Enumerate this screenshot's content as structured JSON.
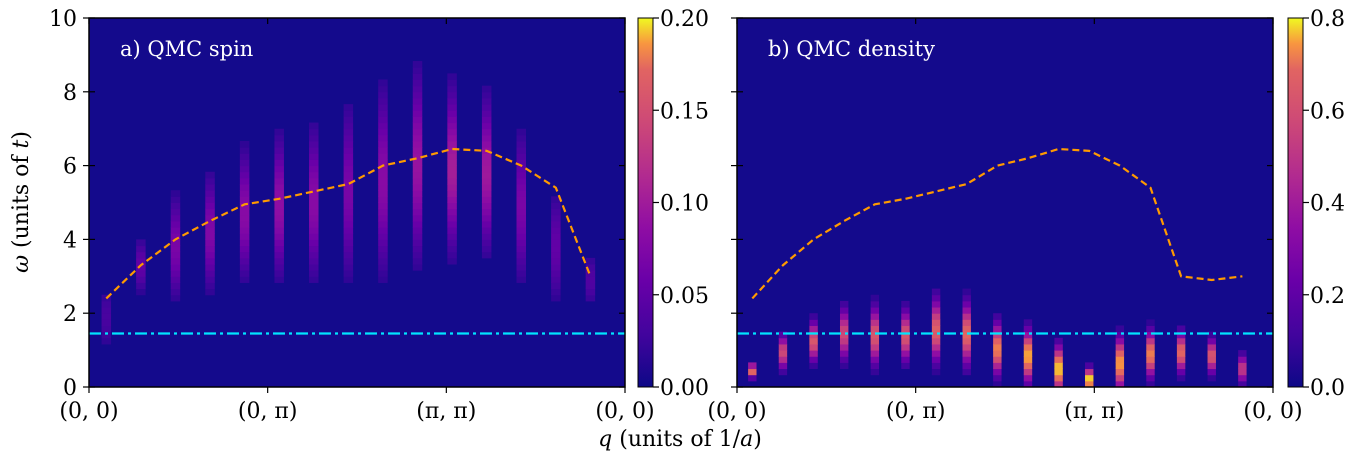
{
  "figure": {
    "ylabel_parts": [
      "ω",
      " (units of ",
      "t",
      ")"
    ],
    "xlabel_parts": [
      "q",
      " (units of 1/",
      "a",
      ")"
    ]
  },
  "chart_data": [
    {
      "type": "heatmap",
      "title": "a)  QMC spin",
      "xticks": [
        "(0, 0)",
        "(0, π)",
        "(π, π)",
        "(0, 0)"
      ],
      "ylim": [
        0,
        10
      ],
      "yticks": [
        "0",
        "2",
        "4",
        "6",
        "8",
        "10"
      ],
      "colorbar": {
        "range": [
          0,
          0.2
        ],
        "ticks": [
          "0.00",
          "0.05",
          "0.10",
          "0.15",
          "0.20"
        ],
        "colormap": "plasma"
      },
      "x_index": [
        0,
        1,
        2,
        3,
        4,
        5,
        6,
        7,
        8,
        9,
        10,
        11,
        12,
        13,
        14,
        15,
        16,
        17,
        18,
        19,
        20,
        21,
        22,
        23,
        24,
        25,
        26,
        27,
        28,
        29
      ],
      "column_intensity": [
        {
          "q_index": 1,
          "omega_center": 1.9,
          "sigma": 0.6,
          "peak": 0.03
        },
        {
          "q_index": 3,
          "omega_center": 3.3,
          "sigma": 0.5,
          "peak": 0.045
        },
        {
          "q_index": 5,
          "omega_center": 3.8,
          "sigma": 0.9,
          "peak": 0.06
        },
        {
          "q_index": 7,
          "omega_center": 4.2,
          "sigma": 1.0,
          "peak": 0.065
        },
        {
          "q_index": 9,
          "omega_center": 4.7,
          "sigma": 1.1,
          "peak": 0.07
        },
        {
          "q_index": 11,
          "omega_center": 4.9,
          "sigma": 1.2,
          "peak": 0.075
        },
        {
          "q_index": 13,
          "omega_center": 5.0,
          "sigma": 1.3,
          "peak": 0.07
        },
        {
          "q_index": 15,
          "omega_center": 5.3,
          "sigma": 1.5,
          "peak": 0.06
        },
        {
          "q_index": 17,
          "omega_center": 5.6,
          "sigma": 1.6,
          "peak": 0.07
        },
        {
          "q_index": 19,
          "omega_center": 6.0,
          "sigma": 1.6,
          "peak": 0.08
        },
        {
          "q_index": 21,
          "omega_center": 5.9,
          "sigma": 1.4,
          "peak": 0.09
        },
        {
          "q_index": 23,
          "omega_center": 5.8,
          "sigma": 1.3,
          "peak": 0.085
        },
        {
          "q_index": 25,
          "omega_center": 4.9,
          "sigma": 1.3,
          "peak": 0.06
        },
        {
          "q_index": 27,
          "omega_center": 3.8,
          "sigma": 1.0,
          "peak": 0.045
        },
        {
          "q_index": 29,
          "omega_center": 2.9,
          "sigma": 0.5,
          "peak": 0.035
        }
      ],
      "series": [
        {
          "style": "dashed",
          "color": "#ff9a00",
          "x": [
            1,
            3,
            5,
            7,
            9,
            11,
            13,
            15,
            17,
            19,
            21,
            23,
            25,
            27,
            29
          ],
          "y": [
            2.4,
            3.3,
            4.0,
            4.5,
            4.95,
            5.1,
            5.3,
            5.5,
            6.0,
            6.2,
            6.45,
            6.4,
            6.0,
            5.4,
            3.0
          ]
        },
        {
          "style": "dash-dot",
          "color": "#00e5ff",
          "constant_y": 1.45
        }
      ]
    },
    {
      "type": "heatmap",
      "title": "b)  QMC density",
      "xticks": [
        "(0, 0)",
        "(0, π)",
        "(π, π)",
        "(0, 0)"
      ],
      "ylim": [
        0,
        10
      ],
      "colorbar": {
        "range": [
          0,
          0.8
        ],
        "ticks": [
          "0.0",
          "0.2",
          "0.4",
          "0.6",
          "0.8"
        ],
        "colormap": "plasma"
      },
      "column_intensity": [
        {
          "q_index": 1,
          "omega_center": 0.45,
          "sigma": 0.12,
          "peak": 0.62
        },
        {
          "q_index": 3,
          "omega_center": 0.95,
          "sigma": 0.3,
          "peak": 0.5
        },
        {
          "q_index": 5,
          "omega_center": 1.25,
          "sigma": 0.35,
          "peak": 0.55
        },
        {
          "q_index": 7,
          "omega_center": 1.45,
          "sigma": 0.45,
          "peak": 0.5
        },
        {
          "q_index": 9,
          "omega_center": 1.4,
          "sigma": 0.5,
          "peak": 0.55
        },
        {
          "q_index": 11,
          "omega_center": 1.4,
          "sigma": 0.45,
          "peak": 0.55
        },
        {
          "q_index": 13,
          "omega_center": 1.55,
          "sigma": 0.55,
          "peak": 0.58
        },
        {
          "q_index": 15,
          "omega_center": 1.45,
          "sigma": 0.55,
          "peak": 0.6
        },
        {
          "q_index": 17,
          "omega_center": 1.05,
          "sigma": 0.45,
          "peak": 0.65
        },
        {
          "q_index": 19,
          "omega_center": 0.85,
          "sigma": 0.45,
          "peak": 0.72
        },
        {
          "q_index": 21,
          "omega_center": 0.5,
          "sigma": 0.4,
          "peak": 0.75
        },
        {
          "q_index": 23,
          "omega_center": 0.2,
          "sigma": 0.2,
          "peak": 0.78
        },
        {
          "q_index": 25,
          "omega_center": 0.65,
          "sigma": 0.45,
          "peak": 0.7
        },
        {
          "q_index": 27,
          "omega_center": 0.9,
          "sigma": 0.4,
          "peak": 0.65
        },
        {
          "q_index": 29,
          "omega_center": 0.95,
          "sigma": 0.35,
          "peak": 0.6
        },
        {
          "q_index": 31,
          "omega_center": 0.85,
          "sigma": 0.3,
          "peak": 0.55
        },
        {
          "q_index": 33,
          "omega_center": 0.5,
          "sigma": 0.25,
          "peak": 0.45
        }
      ],
      "series": [
        {
          "style": "dashed",
          "color": "#ff9a00",
          "x": [
            1,
            3,
            5,
            7,
            9,
            11,
            13,
            15,
            17,
            19,
            21,
            23,
            25,
            27,
            29,
            31,
            33
          ],
          "y": [
            2.4,
            3.3,
            4.0,
            4.5,
            4.95,
            5.1,
            5.3,
            5.5,
            6.0,
            6.2,
            6.45,
            6.4,
            6.0,
            5.4,
            3.0,
            2.9,
            3.0
          ]
        },
        {
          "style": "dash-dot",
          "color": "#00e5ff",
          "constant_y": 1.45
        }
      ]
    }
  ]
}
